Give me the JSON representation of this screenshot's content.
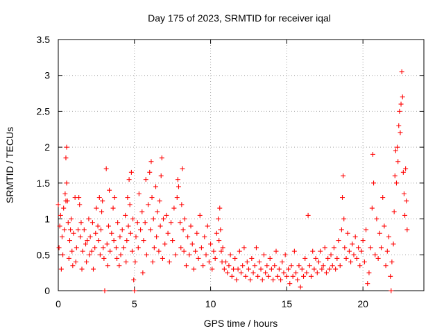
{
  "chart_data": {
    "type": "scatter",
    "title": "Day 175 of 2023, SRMTID for receiver iqal",
    "xlabel": "GPS time / hours",
    "ylabel": "SRMTID / TECUs",
    "xlim": [
      0,
      24
    ],
    "ylim": [
      0,
      3.5
    ],
    "x_ticks": [
      0,
      5,
      10,
      15,
      20
    ],
    "x_tick_labels": [
      "0",
      "5",
      "10",
      "15",
      "20"
    ],
    "y_ticks": [
      0,
      0.5,
      1,
      1.5,
      2,
      2.5,
      3,
      3.5
    ],
    "y_tick_labels": [
      "0",
      "0.5",
      "1",
      "1.5",
      "2",
      "2.5",
      "3",
      "3.5"
    ],
    "grid": true,
    "marker": "plus",
    "color": "#ff0000",
    "series": [
      {
        "name": "SRMTID",
        "points": [
          [
            0.0,
            1.2
          ],
          [
            0.05,
            0.6
          ],
          [
            0.1,
            0.9
          ],
          [
            0.15,
            1.05
          ],
          [
            0.2,
            0.3
          ],
          [
            0.25,
            0.75
          ],
          [
            0.3,
            0.5
          ],
          [
            0.35,
            1.15
          ],
          [
            0.4,
            0.85
          ],
          [
            0.45,
            1.35
          ],
          [
            0.5,
            1.25
          ],
          [
            0.5,
            1.85
          ],
          [
            0.55,
            1.5
          ],
          [
            0.55,
            2.0
          ],
          [
            0.6,
            1.25
          ],
          [
            0.65,
            0.95
          ],
          [
            0.7,
            0.45
          ],
          [
            0.75,
            0.7
          ],
          [
            0.8,
            0.85
          ],
          [
            0.85,
            1.0
          ],
          [
            0.9,
            0.55
          ],
          [
            0.95,
            0.35
          ],
          [
            1.0,
            0.8
          ],
          [
            1.1,
            1.3
          ],
          [
            1.15,
            0.4
          ],
          [
            1.2,
            0.6
          ],
          [
            1.3,
            0.85
          ],
          [
            1.35,
            1.3
          ],
          [
            1.4,
            1.2
          ],
          [
            1.45,
            0.75
          ],
          [
            1.5,
            0.95
          ],
          [
            1.55,
            0.3
          ],
          [
            1.6,
            0.55
          ],
          [
            1.7,
            0.85
          ],
          [
            1.8,
            0.65
          ],
          [
            1.85,
            0.4
          ],
          [
            1.9,
            0.7
          ],
          [
            2.0,
            1.0
          ],
          [
            2.05,
            0.5
          ],
          [
            2.1,
            0.75
          ],
          [
            2.2,
            0.55
          ],
          [
            2.25,
            0.95
          ],
          [
            2.3,
            0.3
          ],
          [
            2.4,
            0.6
          ],
          [
            2.45,
            0.8
          ],
          [
            2.5,
            1.15
          ],
          [
            2.6,
            0.9
          ],
          [
            2.65,
            0.7
          ],
          [
            2.7,
            1.3
          ],
          [
            2.75,
            0.5
          ],
          [
            2.8,
            0.85
          ],
          [
            2.85,
            1.1
          ],
          [
            2.9,
            1.25
          ],
          [
            2.95,
            0.6
          ],
          [
            3.0,
            0.45
          ],
          [
            3.05,
            0.0
          ],
          [
            3.15,
            1.7
          ],
          [
            3.2,
            0.65
          ],
          [
            3.25,
            0.35
          ],
          [
            3.3,
            0.9
          ],
          [
            3.35,
            1.4
          ],
          [
            3.4,
            0.55
          ],
          [
            3.5,
            0.8
          ],
          [
            3.6,
            1.15
          ],
          [
            3.65,
            0.7
          ],
          [
            3.7,
            1.3
          ],
          [
            3.8,
            0.6
          ],
          [
            3.85,
            0.45
          ],
          [
            3.9,
            0.95
          ],
          [
            4.0,
            0.35
          ],
          [
            4.05,
            0.75
          ],
          [
            4.1,
            0.5
          ],
          [
            4.2,
            0.85
          ],
          [
            4.3,
            0.6
          ],
          [
            4.4,
            1.05
          ],
          [
            4.45,
            0.4
          ],
          [
            4.5,
            0.7
          ],
          [
            4.55,
            1.3
          ],
          [
            4.6,
            0.9
          ],
          [
            4.65,
            1.55
          ],
          [
            4.7,
            1.2
          ],
          [
            4.75,
            0.8
          ],
          [
            4.8,
            1.65
          ],
          [
            4.85,
            0.55
          ],
          [
            4.9,
            1.0
          ],
          [
            4.95,
            0.15
          ],
          [
            5.0,
            0.0
          ],
          [
            5.05,
            0.4
          ],
          [
            5.1,
            0.75
          ],
          [
            5.2,
            0.95
          ],
          [
            5.25,
            0.6
          ],
          [
            5.3,
            1.35
          ],
          [
            5.4,
            0.85
          ],
          [
            5.5,
            1.1
          ],
          [
            5.55,
            0.25
          ],
          [
            5.6,
            0.7
          ],
          [
            5.7,
            0.95
          ],
          [
            5.75,
            1.55
          ],
          [
            5.8,
            0.5
          ],
          [
            5.9,
            1.2
          ],
          [
            6.0,
            1.65
          ],
          [
            6.05,
            0.85
          ],
          [
            6.1,
            1.8
          ],
          [
            6.15,
            1.3
          ],
          [
            6.2,
            0.4
          ],
          [
            6.25,
            1.0
          ],
          [
            6.3,
            0.6
          ],
          [
            6.4,
            1.45
          ],
          [
            6.45,
            0.75
          ],
          [
            6.5,
            1.1
          ],
          [
            6.6,
            0.55
          ],
          [
            6.65,
            1.25
          ],
          [
            6.7,
            0.9
          ],
          [
            6.75,
            1.6
          ],
          [
            6.8,
            1.85
          ],
          [
            6.85,
            0.45
          ],
          [
            6.9,
            1.0
          ],
          [
            7.0,
            0.65
          ],
          [
            7.1,
            1.05
          ],
          [
            7.2,
            0.8
          ],
          [
            7.3,
            0.4
          ],
          [
            7.4,
            0.95
          ],
          [
            7.5,
            0.7
          ],
          [
            7.6,
            1.15
          ],
          [
            7.7,
            0.5
          ],
          [
            7.8,
            1.3
          ],
          [
            7.85,
            1.55
          ],
          [
            7.9,
            1.45
          ],
          [
            8.0,
            0.95
          ],
          [
            8.05,
            0.6
          ],
          [
            8.1,
            1.2
          ],
          [
            8.15,
            1.7
          ],
          [
            8.2,
            0.85
          ],
          [
            8.25,
            0.55
          ],
          [
            8.3,
            1.0
          ],
          [
            8.4,
            0.35
          ],
          [
            8.5,
            0.75
          ],
          [
            8.6,
            0.5
          ],
          [
            8.7,
            0.9
          ],
          [
            8.8,
            0.65
          ],
          [
            8.9,
            0.3
          ],
          [
            9.0,
            0.55
          ],
          [
            9.1,
            0.8
          ],
          [
            9.2,
            0.45
          ],
          [
            9.3,
            1.05
          ],
          [
            9.4,
            0.6
          ],
          [
            9.5,
            0.35
          ],
          [
            9.6,
            0.75
          ],
          [
            9.7,
            0.5
          ],
          [
            9.8,
            0.9
          ],
          [
            9.9,
            0.4
          ],
          [
            10.0,
            0.65
          ],
          [
            10.1,
            0.3
          ],
          [
            10.2,
            0.55
          ],
          [
            10.3,
            0.45
          ],
          [
            10.4,
            0.8
          ],
          [
            10.5,
            1.0
          ],
          [
            10.55,
            0.7
          ],
          [
            10.6,
            1.15
          ],
          [
            10.65,
            0.85
          ],
          [
            10.7,
            0.55
          ],
          [
            10.75,
            0.4
          ],
          [
            10.8,
            0.6
          ],
          [
            10.9,
            0.3
          ],
          [
            11.0,
            0.4
          ],
          [
            11.1,
            0.25
          ],
          [
            11.2,
            0.35
          ],
          [
            11.3,
            0.5
          ],
          [
            11.4,
            0.2
          ],
          [
            11.5,
            0.3
          ],
          [
            11.6,
            0.45
          ],
          [
            11.7,
            0.15
          ],
          [
            11.8,
            0.3
          ],
          [
            11.9,
            0.55
          ],
          [
            12.0,
            0.25
          ],
          [
            12.1,
            0.35
          ],
          [
            12.2,
            0.6
          ],
          [
            12.3,
            0.2
          ],
          [
            12.4,
            0.4
          ],
          [
            12.5,
            0.3
          ],
          [
            12.6,
            0.15
          ],
          [
            12.7,
            0.45
          ],
          [
            12.8,
            0.25
          ],
          [
            12.9,
            0.35
          ],
          [
            13.0,
            0.6
          ],
          [
            13.1,
            0.2
          ],
          [
            13.2,
            0.4
          ],
          [
            13.3,
            0.3
          ],
          [
            13.4,
            0.15
          ],
          [
            13.5,
            0.5
          ],
          [
            13.6,
            0.25
          ],
          [
            13.7,
            0.35
          ],
          [
            13.8,
            0.2
          ],
          [
            13.9,
            0.45
          ],
          [
            14.0,
            0.3
          ],
          [
            14.1,
            0.15
          ],
          [
            14.2,
            0.35
          ],
          [
            14.3,
            0.55
          ],
          [
            14.4,
            0.2
          ],
          [
            14.5,
            0.3
          ],
          [
            14.6,
            0.15
          ],
          [
            14.7,
            0.4
          ],
          [
            14.8,
            0.25
          ],
          [
            14.9,
            0.5
          ],
          [
            15.0,
            0.2
          ],
          [
            15.1,
            0.3
          ],
          [
            15.2,
            0.1
          ],
          [
            15.3,
            0.35
          ],
          [
            15.4,
            0.2
          ],
          [
            15.5,
            0.55
          ],
          [
            15.6,
            0.25
          ],
          [
            15.7,
            0.15
          ],
          [
            15.8,
            0.35
          ],
          [
            15.9,
            0.05
          ],
          [
            16.0,
            0.3
          ],
          [
            16.1,
            0.2
          ],
          [
            16.2,
            0.45
          ],
          [
            16.3,
            0.25
          ],
          [
            16.4,
            1.05
          ],
          [
            16.5,
            0.35
          ],
          [
            16.6,
            0.2
          ],
          [
            16.7,
            0.55
          ],
          [
            16.8,
            0.3
          ],
          [
            16.9,
            0.45
          ],
          [
            17.0,
            0.25
          ],
          [
            17.1,
            0.4
          ],
          [
            17.2,
            0.55
          ],
          [
            17.3,
            0.3
          ],
          [
            17.4,
            0.35
          ],
          [
            17.5,
            0.6
          ],
          [
            17.6,
            0.25
          ],
          [
            17.7,
            0.45
          ],
          [
            17.8,
            0.3
          ],
          [
            17.9,
            0.5
          ],
          [
            18.0,
            0.35
          ],
          [
            18.1,
            0.6
          ],
          [
            18.2,
            0.3
          ],
          [
            18.3,
            0.45
          ],
          [
            18.4,
            0.7
          ],
          [
            18.5,
            0.35
          ],
          [
            18.6,
            0.85
          ],
          [
            18.65,
            1.3
          ],
          [
            18.7,
            1.6
          ],
          [
            18.75,
            1.0
          ],
          [
            18.8,
            0.6
          ],
          [
            18.9,
            0.45
          ],
          [
            19.0,
            0.8
          ],
          [
            19.1,
            0.55
          ],
          [
            19.2,
            0.4
          ],
          [
            19.3,
            0.65
          ],
          [
            19.4,
            0.5
          ],
          [
            19.5,
            0.75
          ],
          [
            19.6,
            0.45
          ],
          [
            19.7,
            0.6
          ],
          [
            19.8,
            0.35
          ],
          [
            19.9,
            0.55
          ],
          [
            20.0,
            0.7
          ],
          [
            20.1,
            0.4
          ],
          [
            20.2,
            0.85
          ],
          [
            20.3,
            0.1
          ],
          [
            20.4,
            0.25
          ],
          [
            20.5,
            0.6
          ],
          [
            20.6,
            1.15
          ],
          [
            20.65,
            1.9
          ],
          [
            20.7,
            1.5
          ],
          [
            20.8,
            0.5
          ],
          [
            20.9,
            1.0
          ],
          [
            21.0,
            0.45
          ],
          [
            21.1,
            0.8
          ],
          [
            21.2,
            0.6
          ],
          [
            21.3,
            1.3
          ],
          [
            21.4,
            0.9
          ],
          [
            21.5,
            0.35
          ],
          [
            21.6,
            0.55
          ],
          [
            21.7,
            0.75
          ],
          [
            21.8,
            0.2
          ],
          [
            21.85,
            0.0
          ],
          [
            21.9,
            0.4
          ],
          [
            22.0,
            0.65
          ],
          [
            22.05,
            1.1
          ],
          [
            22.1,
            1.6
          ],
          [
            22.15,
            1.95
          ],
          [
            22.2,
            1.5
          ],
          [
            22.25,
            2.0
          ],
          [
            22.3,
            1.8
          ],
          [
            22.35,
            2.3
          ],
          [
            22.4,
            2.5
          ],
          [
            22.45,
            2.2
          ],
          [
            22.5,
            2.6
          ],
          [
            22.55,
            3.05
          ],
          [
            22.6,
            2.7
          ],
          [
            22.65,
            1.65
          ],
          [
            22.7,
            1.35
          ],
          [
            22.75,
            1.05
          ],
          [
            22.8,
            1.7
          ],
          [
            22.85,
            1.25
          ],
          [
            22.9,
            0.85
          ]
        ]
      }
    ]
  }
}
